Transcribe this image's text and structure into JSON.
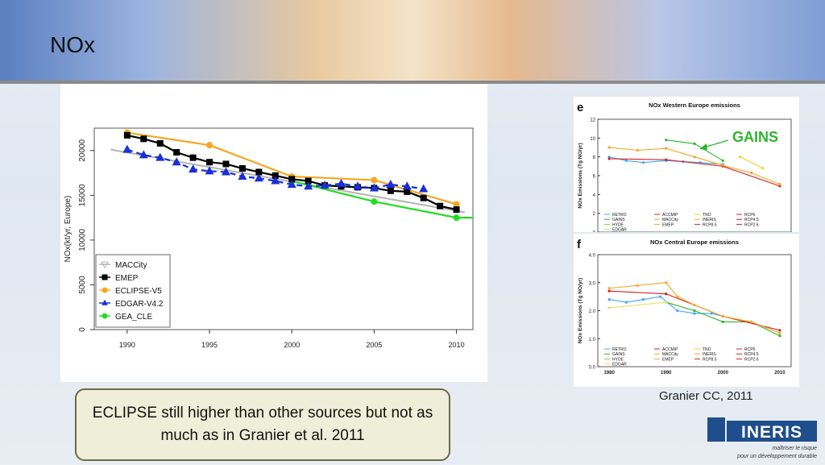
{
  "slide": {
    "title": "NOx",
    "caption": "Granier CC, 2011",
    "note": "ECLIPSE still higher than other sources but not as much as in Granier et al. 2011",
    "logo_text": "INERIS",
    "logo_tagline_1": "maîtriser le risque",
    "logo_tagline_2": "pour un développement durable"
  },
  "colors": {
    "maccity": "#b5b5b5",
    "emep": "#000000",
    "eclipse": "#f5a623",
    "edgar": "#1a2fd6",
    "gea": "#22dd22"
  },
  "chart_data": [
    {
      "type": "line",
      "title": "",
      "xlabel": "",
      "ylabel": "NOx(kt/yr, Europe)",
      "xlim": [
        1988,
        2011
      ],
      "ylim": [
        0,
        22500
      ],
      "x_ticks": [
        1990,
        1995,
        2000,
        2005,
        2010
      ],
      "y_ticks": [
        0,
        5000,
        10000,
        15000,
        20000
      ],
      "legend_position": "bottom-left",
      "series": [
        {
          "name": "MACCity",
          "color_key": "maccity",
          "marker": "triangle-down",
          "x": [
            1989,
            2010.5
          ],
          "values": [
            20100,
            13100
          ]
        },
        {
          "name": "EMEP",
          "color_key": "emep",
          "marker": "square",
          "x": [
            1990,
            1991,
            1992,
            1993,
            1994,
            1995,
            1996,
            1997,
            1998,
            1999,
            2000,
            2001,
            2002,
            2003,
            2004,
            2005,
            2006,
            2007,
            2008,
            2009,
            2010
          ],
          "values": [
            21700,
            21300,
            20800,
            19800,
            19200,
            18700,
            18500,
            18000,
            17600,
            17200,
            16800,
            16600,
            16100,
            16000,
            15900,
            15800,
            15500,
            15400,
            14700,
            13800,
            13400
          ]
        },
        {
          "name": "ECLIPSE-V5",
          "color_key": "eclipse",
          "marker": "circle",
          "x": [
            1990,
            1995,
            2000,
            2005,
            2010
          ],
          "values": [
            22000,
            20600,
            17100,
            16700,
            14000
          ]
        },
        {
          "name": "EDGAR-V4.2",
          "color_key": "edgar",
          "marker": "triangle-up",
          "x": [
            1990,
            1991,
            1992,
            1993,
            1994,
            1995,
            1996,
            1997,
            1998,
            1999,
            2000,
            2001,
            2002,
            2003,
            2004,
            2005,
            2006,
            2007,
            2008
          ],
          "values": [
            20100,
            19500,
            19200,
            18700,
            17900,
            17700,
            17600,
            17100,
            16900,
            16600,
            16200,
            16000,
            16100,
            16300,
            16000,
            15800,
            16200,
            16000,
            15700
          ]
        },
        {
          "name": "GEA_CLE",
          "color_key": "gea",
          "marker": "circle",
          "x": [
            2000,
            2005,
            2010,
            2011
          ],
          "values": [
            16600,
            14300,
            12500,
            12500
          ]
        }
      ]
    },
    {
      "type": "line",
      "panel": "e",
      "title": "NOx Western Europe emissions",
      "ylabel": "NOx Emissions (Tg NO/yr)",
      "xlim": [
        1980,
        2010
      ],
      "ylim": [
        0,
        12
      ],
      "y_ticks": [
        0,
        2,
        4,
        6,
        8,
        10,
        12
      ],
      "annotation": "GAINS",
      "legend": [
        "RETRO",
        "GAINS",
        "HYDE",
        "EDGAR",
        "ACCMIP",
        "MACCity",
        "EMEP",
        "TNO",
        "INERIS",
        "RCP8.5",
        "RCP6",
        "RCP4.5",
        "RCP2.6"
      ],
      "series": [
        {
          "name": "RETRO",
          "color": "#3fa9f5",
          "x": [
            1980,
            1983,
            1986,
            1990,
            1993,
            1996,
            2000
          ],
          "values": [
            8.0,
            7.6,
            7.4,
            7.6,
            7.5,
            7.4,
            7.2
          ]
        },
        {
          "name": "GAINS",
          "color": "#2db52d",
          "x": [
            1990,
            1995,
            2000
          ],
          "values": [
            9.8,
            9.4,
            7.6
          ]
        },
        {
          "name": "ACCMIP",
          "color": "#d62020",
          "x": [
            1980,
            1990,
            2000,
            2010
          ],
          "values": [
            7.8,
            7.7,
            7.0,
            4.9
          ]
        },
        {
          "name": "EMEP",
          "color": "#f5a623",
          "x": [
            1980,
            1985,
            1990,
            1995,
            2000,
            2005,
            2010
          ],
          "values": [
            9.0,
            8.7,
            8.9,
            8.0,
            7.1,
            6.3,
            5.1
          ]
        },
        {
          "name": "TNO",
          "color": "#f0d020",
          "x": [
            2003,
            2007
          ],
          "values": [
            8.0,
            6.8
          ]
        }
      ]
    },
    {
      "type": "line",
      "panel": "f",
      "title": "NOx Central Europe emissions",
      "ylabel": "NOx Emissions (Tg NO/yr)",
      "xlim": [
        1980,
        2010
      ],
      "ylim": [
        0,
        4.0
      ],
      "x_ticks": [
        1980,
        1990,
        2000,
        2010
      ],
      "y_ticks": [
        0.0,
        1.0,
        2.0,
        3.0,
        4.0
      ],
      "legend": [
        "RETRO",
        "GAINS",
        "HYDE",
        "EDGAR",
        "ACCMIP",
        "MACCity",
        "EMEP",
        "TNO",
        "INERIS",
        "RCP8.5",
        "RCP6",
        "RCP4.5",
        "RCP2.6"
      ],
      "series": [
        {
          "name": "RETRO",
          "color": "#3fa9f5",
          "x": [
            1980,
            1983,
            1986,
            1989,
            1992,
            1995,
            1998,
            2000
          ],
          "values": [
            2.4,
            2.3,
            2.4,
            2.5,
            2.0,
            1.9,
            1.9,
            1.8
          ]
        },
        {
          "name": "GAINS",
          "color": "#2db52d",
          "x": [
            1990,
            1995,
            2000,
            2005,
            2010
          ],
          "values": [
            2.3,
            2.0,
            1.6,
            1.6,
            1.1
          ]
        },
        {
          "name": "ACCMIP",
          "color": "#d62020",
          "x": [
            1980,
            1990,
            2000,
            2010
          ],
          "values": [
            2.7,
            2.6,
            1.8,
            1.3
          ]
        },
        {
          "name": "EMEP",
          "color": "#f5a623",
          "x": [
            1980,
            1985,
            1990,
            1992,
            1995,
            2000,
            2005,
            2010
          ],
          "values": [
            2.8,
            2.9,
            3.0,
            2.5,
            2.2,
            1.8,
            1.6,
            1.2
          ]
        },
        {
          "name": "EDGAR",
          "color": "#e8e060",
          "x": [
            1980,
            1990
          ],
          "values": [
            2.1,
            2.3
          ]
        }
      ]
    }
  ]
}
